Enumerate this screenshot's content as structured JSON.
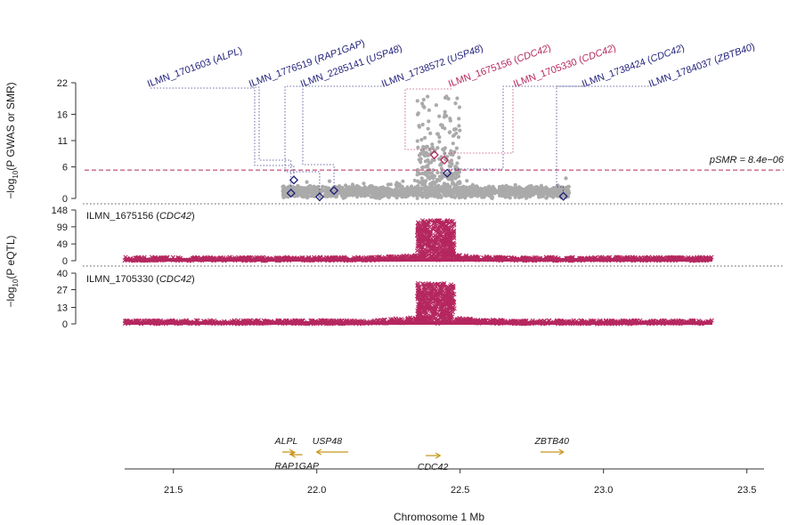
{
  "chart_data": {
    "type": "scatter",
    "title": "",
    "colors": {
      "gwas": "#aaaaaa",
      "eqtl": "#b5275f",
      "navy": "#1f1f7a",
      "highlight": "#b5275f",
      "gene": "#c8961e",
      "axis": "#333333"
    },
    "xaxis": {
      "label": "Chromosome 1 Mb",
      "range": [
        21.33,
        23.56
      ],
      "ticks": [
        21.5,
        22.0,
        22.5,
        23.0,
        23.5
      ],
      "tick_labels": [
        "21.5",
        "22.0",
        "22.5",
        "23.0",
        "23.5"
      ]
    },
    "gwas_panel": {
      "ylabel_prefix": "−log",
      "ylabel_sub": "10",
      "ylabel_suffix": "(P GWAS or SMR)",
      "ylim": [
        0,
        22
      ],
      "yticks": [
        0,
        6,
        11,
        16,
        22
      ],
      "threshold_y": 5.4,
      "threshold_label": "pSMR = 8.4e−06",
      "hit_region": [
        22.32,
        22.5
      ],
      "data_range": [
        21.88,
        22.88
      ],
      "smr_probes": [
        {
          "probe": "ILMN_1701603",
          "gene": "ALPL",
          "pos": 21.92,
          "value": 3.5,
          "significant": false
        },
        {
          "probe": "ILMN_1776519",
          "gene": "RAP1GAP",
          "pos": 21.91,
          "value": 1.0,
          "significant": false
        },
        {
          "probe": "ILMN_2285141",
          "gene": "USP48",
          "pos": 22.01,
          "value": 0.3,
          "significant": false
        },
        {
          "probe": "ILMN_1738572",
          "gene": "USP48",
          "pos": 22.06,
          "value": 1.5,
          "significant": false
        },
        {
          "probe": "ILMN_1675156",
          "gene": "CDC42",
          "pos": 22.41,
          "value": 8.3,
          "significant": true
        },
        {
          "probe": "ILMN_1705330",
          "gene": "CDC42",
          "pos": 22.445,
          "value": 7.3,
          "significant": true
        },
        {
          "probe": "ILMN_1738424",
          "gene": "CDC42",
          "pos": 22.455,
          "value": 4.8,
          "significant": false
        },
        {
          "probe": "ILMN_1784037",
          "gene": "ZBTB40",
          "pos": 22.86,
          "value": 0.4,
          "significant": false
        }
      ]
    },
    "eqtl_panels": [
      {
        "probe": "ILMN_1675156",
        "gene": "CDC42",
        "ylim": [
          0,
          148
        ],
        "yticks": [
          0,
          49,
          99,
          148
        ],
        "peak": 118,
        "hit_region": [
          22.35,
          22.48
        ]
      },
      {
        "probe": "ILMN_1705330",
        "gene": "CDC42",
        "ylim": [
          0,
          40
        ],
        "yticks": [
          0,
          13,
          27,
          40
        ],
        "peak": 32,
        "hit_region": [
          22.35,
          22.48
        ]
      }
    ],
    "eqtl_ylabel_prefix": "−log",
    "eqtl_ylabel_sub": "10",
    "eqtl_ylabel_suffix": "(P eQTL)",
    "eqtl_data_range": [
      21.33,
      23.38
    ],
    "genes": [
      {
        "name": "ALPL",
        "start": 21.88,
        "end": 21.92,
        "strand": "+",
        "row": 0
      },
      {
        "name": "RAP1GAP",
        "start": 21.91,
        "end": 21.95,
        "strand": "-",
        "row": 1
      },
      {
        "name": "USP48",
        "start": 22.0,
        "end": 22.11,
        "strand": "-",
        "row": 0
      },
      {
        "name": "CDC42",
        "start": 22.38,
        "end": 22.43,
        "strand": "+",
        "row": 2
      },
      {
        "name": "ZBTB40",
        "start": 22.78,
        "end": 22.86,
        "strand": "+",
        "row": 0
      }
    ]
  }
}
